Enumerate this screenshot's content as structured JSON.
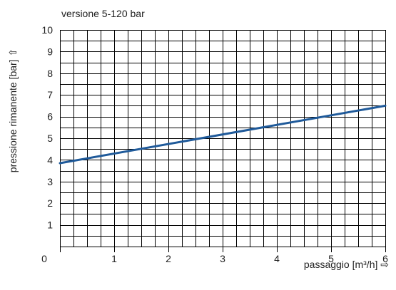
{
  "chart_data": {
    "type": "line",
    "title": "versione 5-120 bar",
    "xlabel": "passaggio [m³/h] ⇨",
    "ylabel": "pressione rimanente [bar] ⇧",
    "xlim": [
      0,
      6
    ],
    "ylim": [
      0,
      10
    ],
    "x_ticks": [
      0,
      1,
      2,
      3,
      4,
      5,
      6
    ],
    "y_ticks": [
      1,
      2,
      3,
      4,
      5,
      6,
      7,
      8,
      9,
      10
    ],
    "x_minor_step": 0.25,
    "y_minor_step": 0.5,
    "grid": true,
    "legend": "none",
    "series": [
      {
        "x": [
          0,
          6
        ],
        "y": [
          3.85,
          6.5
        ],
        "color": "#1f5a9a"
      }
    ]
  }
}
